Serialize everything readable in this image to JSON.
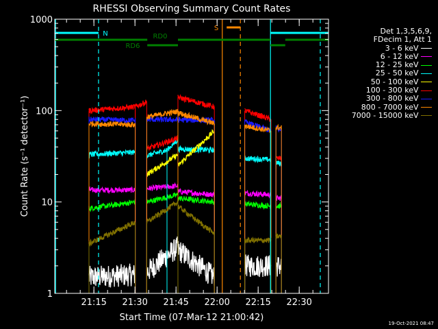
{
  "chart_data": {
    "type": "line",
    "title": "RHESSI Observing Summary Count Rates",
    "xlabel": "Start Time (07-Mar-12 21:00:42)",
    "ylabel": "Count Rate (s⁻¹ detector⁻¹)",
    "yscale": "log",
    "ylim": [
      1,
      1000
    ],
    "xlim_minutes": [
      0,
      100
    ],
    "x_unit": "minutes after 21:00:42",
    "yticks": [
      {
        "v": 1,
        "label": "1"
      },
      {
        "v": 10,
        "label": "10"
      },
      {
        "v": 100,
        "label": "100"
      },
      {
        "v": 1000,
        "label": "1000"
      }
    ],
    "xticks": [
      {
        "m": 14.3,
        "label": "21:15"
      },
      {
        "m": 29.3,
        "label": "21:30"
      },
      {
        "m": 44.3,
        "label": "21:45"
      },
      {
        "m": 59.3,
        "label": "22:00"
      },
      {
        "m": 74.3,
        "label": "22:15"
      },
      {
        "m": 89.3,
        "label": "22:30"
      }
    ],
    "legend_header": [
      "Det 1,3,5,6,9,",
      "FDecim 1, Att 1"
    ],
    "series": [
      {
        "name": "3 - 6 keV",
        "color": "#ffffff",
        "segments": [
          [
            12.5,
            29.4,
            1.5,
            1.6
          ],
          [
            33.6,
            45.0,
            1.7,
            3.2
          ],
          [
            45.0,
            58.3,
            3.0,
            1.5
          ],
          [
            69.4,
            79.0,
            2.0,
            2.0
          ],
          [
            80.8,
            82.8,
            2.0,
            2.0
          ]
        ]
      },
      {
        "name": "6 - 12 keV",
        "color": "#ff00ff",
        "segments": [
          [
            12.5,
            29.4,
            13.5,
            13.5
          ],
          [
            33.6,
            45.0,
            14.0,
            15.0
          ],
          [
            45.0,
            58.3,
            13.0,
            12.0
          ],
          [
            69.4,
            79.0,
            12.5,
            12.0
          ],
          [
            80.8,
            82.8,
            11.0,
            11.0
          ]
        ]
      },
      {
        "name": "12 - 25 keV",
        "color": "#00ff00",
        "segments": [
          [
            12.5,
            29.4,
            8.5,
            10.0
          ],
          [
            33.6,
            45.0,
            10.0,
            12.0
          ],
          [
            45.0,
            58.3,
            11.0,
            10.0
          ],
          [
            69.4,
            79.0,
            9.5,
            9.0
          ],
          [
            80.8,
            82.8,
            9.0,
            9.0
          ]
        ]
      },
      {
        "name": "25 - 50 keV",
        "color": "#00ffff",
        "segments": [
          [
            12.5,
            29.4,
            33.0,
            35.0
          ],
          [
            33.6,
            41.0,
            32.0,
            37.0
          ],
          [
            41.0,
            45.0,
            37.0,
            48.0
          ],
          [
            45.0,
            58.3,
            38.0,
            37.0
          ],
          [
            69.4,
            79.0,
            30.0,
            29.0
          ],
          [
            80.8,
            82.8,
            27.0,
            26.0
          ]
        ]
      },
      {
        "name": "50 - 100 keV",
        "color": "#ffff00",
        "segments": [
          [
            33.6,
            45.0,
            20.0,
            33.0
          ],
          [
            45.0,
            58.3,
            25.0,
            60.0
          ]
        ]
      },
      {
        "name": "100 - 300 keV",
        "color": "#ff0000",
        "segments": [
          [
            12.5,
            29.4,
            100.0,
            110.0
          ],
          [
            29.4,
            33.6,
            110.0,
            125.0
          ],
          [
            33.6,
            45.0,
            38.0,
            50.0
          ],
          [
            45.0,
            58.3,
            140.0,
            110.0
          ],
          [
            69.4,
            79.0,
            100.0,
            80.0
          ],
          [
            80.8,
            82.8,
            30.0,
            30.0
          ]
        ]
      },
      {
        "name": "300 - 800 keV",
        "color": "#1a1aff",
        "segments": [
          [
            12.5,
            29.4,
            80.0,
            78.0
          ],
          [
            33.6,
            58.3,
            80.0,
            78.0
          ],
          [
            69.4,
            79.0,
            75.0,
            60.0
          ],
          [
            80.8,
            82.8,
            65.0,
            60.0
          ]
        ]
      },
      {
        "name": "800 - 7000 keV",
        "color": "#ff8800",
        "segments": [
          [
            12.5,
            29.4,
            72.0,
            70.0
          ],
          [
            33.6,
            45.0,
            85.0,
            98.0
          ],
          [
            45.0,
            58.3,
            95.0,
            72.0
          ],
          [
            69.4,
            79.0,
            68.0,
            60.0
          ],
          [
            80.8,
            82.8,
            65.0,
            65.0
          ]
        ]
      },
      {
        "name": "7000 - 15000 keV",
        "color": "#807000",
        "segments": [
          [
            12.5,
            29.4,
            3.5,
            6.0
          ],
          [
            33.6,
            45.0,
            6.0,
            10.0
          ],
          [
            45.0,
            58.3,
            9.0,
            4.5
          ],
          [
            69.4,
            79.0,
            3.8,
            3.8
          ],
          [
            80.8,
            82.8,
            4.2,
            4.2
          ]
        ]
      }
    ],
    "flags": [
      {
        "name": "N",
        "color": "#00ffff",
        "ranges": [
          [
            0,
            16.0
          ],
          [
            78.8,
            100
          ]
        ]
      },
      {
        "name": "S",
        "color": "#ff8800",
        "ranges": [
          [
            62.8,
            67.8
          ]
        ]
      },
      {
        "name": "RD0",
        "color": "#008000",
        "ranges": [
          [
            0,
            33.8
          ],
          [
            45.0,
            78.8
          ],
          [
            84.2,
            100
          ]
        ]
      },
      {
        "name": "RD6",
        "color": "#008000",
        "ranges": [
          [
            33.8,
            45.0
          ],
          [
            78.8,
            84.2
          ]
        ]
      }
    ],
    "vertical_lines": [
      {
        "m": 0.3,
        "color": "#00ffff",
        "style": "solid"
      },
      {
        "m": 16.0,
        "color": "#00ffff",
        "style": "dashed"
      },
      {
        "m": 61.2,
        "color": "#ff8800",
        "style": "solid"
      },
      {
        "m": 67.8,
        "color": "#ff8800",
        "style": "dashed"
      },
      {
        "m": 78.8,
        "color": "#00ffff",
        "style": "solid"
      },
      {
        "m": 97.0,
        "color": "#00ffff",
        "style": "dashed"
      }
    ],
    "footer_date": "19-Oct-2021 08:47"
  }
}
